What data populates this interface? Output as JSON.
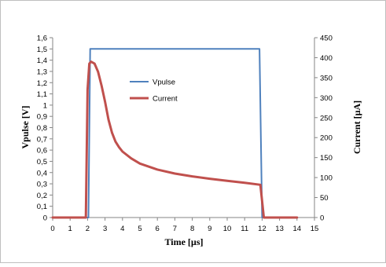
{
  "chart_data": {
    "type": "line",
    "title": "",
    "xlabel": "Time [µs]",
    "ylabel": "Vpulse [V]",
    "y2label": "Current [µA]",
    "xlim": [
      0,
      15
    ],
    "ylim": [
      0,
      1.6
    ],
    "y2lim": [
      0,
      450
    ],
    "grid": false,
    "legend_position": "center-left",
    "x_ticks": [
      0,
      1,
      2,
      3,
      4,
      5,
      6,
      7,
      8,
      9,
      10,
      11,
      12,
      13,
      14,
      15
    ],
    "x_tick_labels": [
      "0",
      "1",
      "2",
      "3",
      "4",
      "5",
      "6",
      "7",
      "8",
      "9",
      "10",
      "11",
      "12",
      "13",
      "14",
      "15"
    ],
    "y_ticks": [
      0,
      0.1,
      0.2,
      0.3,
      0.4,
      0.5,
      0.6,
      0.7,
      0.8,
      0.9,
      1,
      1.1,
      1.2,
      1.3,
      1.4,
      1.5,
      1.6
    ],
    "y_tick_labels": [
      "0",
      "0,1",
      "0,2",
      "0,3",
      "0,4",
      "0,5",
      "0,6",
      "0,7",
      "0,8",
      "0,9",
      "1",
      "1,1",
      "1,2",
      "1,3",
      "1,4",
      "1,5",
      "1,6"
    ],
    "y2_ticks": [
      0,
      50,
      100,
      150,
      200,
      250,
      300,
      350,
      400,
      450
    ],
    "y2_tick_labels": [
      "0",
      "50",
      "100",
      "150",
      "200",
      "250",
      "300",
      "350",
      "400",
      "450"
    ],
    "series": [
      {
        "name": "Vpulse",
        "axis": "left",
        "color": "#4f81bd",
        "x": [
          0,
          2.05,
          2.15,
          11.85,
          12.0,
          14
        ],
        "y": [
          0,
          0,
          1.5,
          1.5,
          0,
          0
        ]
      },
      {
        "name": "Current",
        "axis": "right",
        "color": "#c0504d",
        "x": [
          0,
          1.9,
          2.0,
          2.1,
          2.2,
          2.4,
          2.6,
          2.8,
          3.0,
          3.2,
          3.4,
          3.6,
          3.8,
          4.0,
          4.5,
          5.0,
          6.0,
          7.0,
          8.0,
          9.0,
          10.0,
          11.0,
          11.9,
          12.1,
          14
        ],
        "y": [
          0,
          0,
          320,
          385,
          390,
          385,
          365,
          330,
          290,
          245,
          212,
          190,
          176,
          165,
          148,
          135,
          120,
          110,
          103,
          97,
          92,
          87,
          82,
          0,
          0
        ]
      }
    ]
  }
}
